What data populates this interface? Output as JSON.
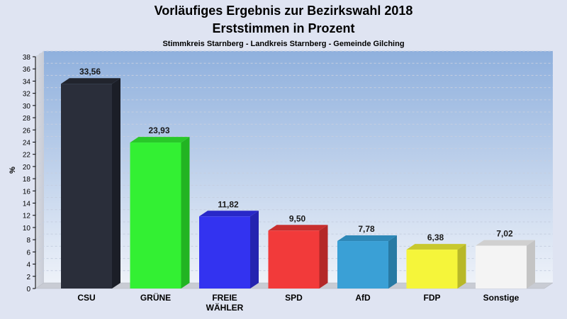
{
  "chart_data": {
    "type": "bar",
    "title": "Vorläufiges Ergebnis zur Bezirkswahl 2018",
    "subtitle": "Erststimmen in Prozent",
    "subsubtitle": "Stimmkreis Starnberg - Landkreis Starnberg - Gemeinde Gilching",
    "ylabel": "%",
    "ylim": [
      0,
      38
    ],
    "yticks": [
      0,
      2,
      4,
      6,
      8,
      10,
      12,
      14,
      16,
      18,
      20,
      22,
      24,
      26,
      28,
      30,
      32,
      34,
      36,
      38
    ],
    "categories": [
      "CSU",
      "GRÜNE",
      "FREIE WÄHLER",
      "SPD",
      "AfD",
      "FDP",
      "Sonstige"
    ],
    "category_lines": [
      [
        "CSU"
      ],
      [
        "GRÜNE"
      ],
      [
        "FREIE",
        "WÄHLER"
      ],
      [
        "SPD"
      ],
      [
        "AfD"
      ],
      [
        "FDP"
      ],
      [
        "Sonstige"
      ]
    ],
    "values": [
      33.56,
      23.93,
      11.82,
      9.5,
      7.78,
      6.38,
      7.02
    ],
    "value_labels": [
      "33,56",
      "23,93",
      "11,82",
      "9,50",
      "7,78",
      "6,38",
      "7,02"
    ],
    "colors": [
      "#2a2e3a",
      "#33f033",
      "#3333f0",
      "#f23a3a",
      "#3aa0d6",
      "#f5f53a",
      "#f4f4f4"
    ],
    "side_colors": [
      "#1b1e27",
      "#22b422",
      "#2424b0",
      "#b42828",
      "#287aa4",
      "#b8b828",
      "#c4c4c4"
    ],
    "top_colors": [
      "#21242d",
      "#29c829",
      "#2828c8",
      "#c82e2e",
      "#2e88b8",
      "#c8c82e",
      "#d0d0d0"
    ],
    "grid": true
  }
}
